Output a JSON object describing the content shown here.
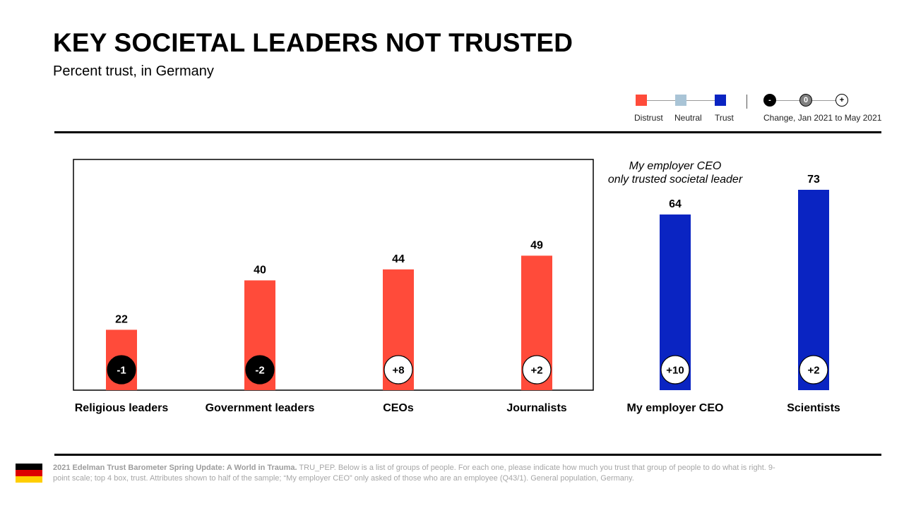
{
  "header": {
    "title": "KEY SOCIETAL LEADERS NOT TRUSTED",
    "subtitle": "Percent trust, in Germany"
  },
  "legend": {
    "distrust_label": "Distrust",
    "neutral_label": "Neutral",
    "trust_label": "Trust",
    "change_label": "Change, Jan 2021 to May 2021",
    "minus_symbol": "-",
    "zero_symbol": "0",
    "plus_symbol": "+",
    "colors": {
      "distrust": "#FF4B3A",
      "neutral": "#A9C4D6",
      "trust": "#0A24C2",
      "decline": "#000000",
      "no_change": "#808080",
      "increase": "#FFFFFF"
    }
  },
  "annotation": {
    "line1": "My employer CEO",
    "line2": "only trusted societal leader"
  },
  "chart_data": {
    "type": "bar",
    "title": "KEY SOCIETAL LEADERS NOT TRUSTED",
    "subtitle": "Percent trust, in Germany",
    "categories": [
      "Religious leaders",
      "Government leaders",
      "CEOs",
      "Journalists",
      "My employer CEO",
      "Scientists"
    ],
    "values": [
      22,
      40,
      44,
      49,
      64,
      73
    ],
    "value_labels": [
      "22",
      "40",
      "44",
      "49",
      "64",
      "73"
    ],
    "trust_level": [
      "Distrust",
      "Distrust",
      "Distrust",
      "Distrust",
      "Trust",
      "Trust"
    ],
    "change": [
      -1,
      -2,
      8,
      2,
      10,
      2
    ],
    "change_labels": [
      "-1",
      "-2",
      "+8",
      "+2",
      "+10",
      "+2"
    ],
    "ylim": [
      0,
      73
    ],
    "boxed_categories": [
      "Religious leaders",
      "Government leaders",
      "CEOs",
      "Journalists"
    ],
    "grid": false
  },
  "footer": {
    "source_bold": "2021 Edelman Trust Barometer Spring Update: A World in Trauma.",
    "source_text": " TRU_PEP. Below is a list of groups of people. For each one, please indicate how much you trust that group of people to do what is right. 9-point scale; top 4 box, trust. Attributes shown to half of the sample; “My employer CEO” only asked of those who are an employee (Q43/1). General population, Germany."
  },
  "flag": {
    "colors": [
      "#000000",
      "#DD0000",
      "#FFCE00"
    ]
  }
}
